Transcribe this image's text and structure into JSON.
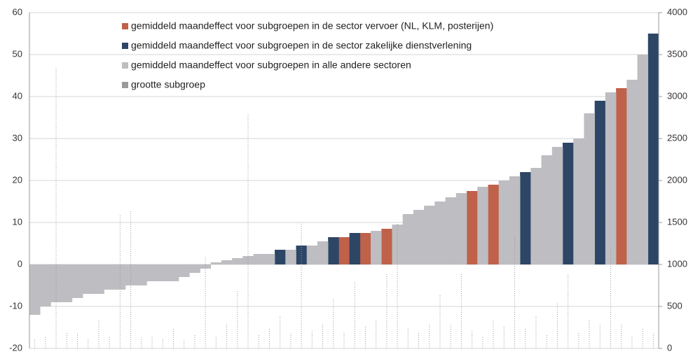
{
  "chart_data": {
    "type": "bar",
    "categories": [
      null,
      null,
      null,
      null,
      null,
      null,
      null,
      null,
      null,
      null,
      null,
      null,
      null,
      null,
      null,
      null,
      null,
      null,
      null,
      null,
      null,
      null,
      null,
      null,
      null,
      null,
      null,
      null,
      null,
      null,
      null,
      null,
      null,
      null,
      null,
      null,
      null,
      null,
      null,
      null,
      null,
      null,
      null,
      null,
      null,
      null,
      null,
      null,
      null,
      null,
      null,
      null,
      null,
      null,
      null,
      null,
      null,
      null,
      null
    ],
    "series": [
      {
        "name": "gemiddeld maandeffect voor subgroepen in de sector vervoer (NL, KLM, posterijen)",
        "color": "#c0614a",
        "values": [
          null,
          null,
          null,
          null,
          null,
          null,
          null,
          null,
          null,
          null,
          null,
          null,
          null,
          null,
          null,
          null,
          null,
          null,
          null,
          null,
          null,
          null,
          null,
          null,
          null,
          null,
          null,
          null,
          null,
          6.5,
          null,
          7.5,
          null,
          8.5,
          null,
          null,
          null,
          null,
          null,
          null,
          null,
          17.5,
          null,
          19,
          null,
          null,
          null,
          null,
          null,
          null,
          null,
          null,
          null,
          null,
          null,
          42,
          null,
          null,
          null
        ]
      },
      {
        "name": "gemiddeld maandeffect voor subgroepen in de sector zakelijke dienstverlening",
        "color": "#2d4666",
        "values": [
          null,
          null,
          null,
          null,
          null,
          null,
          null,
          null,
          null,
          null,
          null,
          null,
          null,
          null,
          null,
          null,
          null,
          null,
          null,
          null,
          null,
          null,
          null,
          3.5,
          null,
          4.5,
          null,
          null,
          6.5,
          null,
          7.5,
          null,
          null,
          null,
          null,
          null,
          null,
          null,
          null,
          null,
          null,
          null,
          null,
          null,
          null,
          null,
          22,
          null,
          null,
          null,
          29,
          null,
          null,
          39,
          null,
          null,
          null,
          null,
          55
        ]
      },
      {
        "name": "gemiddeld maandeffect voor subgroepen in alle andere sectoren",
        "color": "#bdbdc2",
        "values": [
          -12,
          -10,
          -9,
          -9,
          -8,
          -7,
          -7,
          -6,
          -6,
          -5,
          -5,
          -4,
          -4,
          -4,
          -3,
          -2,
          -1,
          0.5,
          1,
          1.5,
          2,
          2.5,
          2.5,
          null,
          3.5,
          null,
          4.5,
          5.5,
          null,
          null,
          null,
          null,
          8,
          null,
          9.5,
          12,
          13,
          14,
          15,
          16,
          17,
          null,
          18.5,
          null,
          20,
          21,
          null,
          23,
          26,
          28,
          null,
          30,
          36,
          null,
          41,
          null,
          44,
          50,
          null
        ]
      },
      {
        "name": "grootte subgroep",
        "color": "#9a9a9a",
        "axis": "y2",
        "values": [
          120,
          150,
          3350,
          200,
          180,
          120,
          350,
          150,
          1600,
          1650,
          130,
          150,
          120,
          250,
          90,
          170,
          1100,
          140,
          300,
          700,
          2800,
          160,
          250,
          400,
          180,
          1500,
          220,
          300,
          600,
          190,
          800,
          260,
          350,
          900,
          1500,
          250,
          200,
          300,
          650,
          280,
          900,
          220,
          150,
          330,
          260,
          1350,
          240,
          400,
          170,
          550,
          900,
          200,
          350,
          280,
          1200,
          300,
          150,
          250,
          180
        ]
      }
    ],
    "ylim": [
      -20,
      60
    ],
    "yticks": [
      -20,
      -10,
      0,
      10,
      20,
      30,
      40,
      50,
      60
    ],
    "y2lim": [
      0,
      4000
    ],
    "y2ticks": [
      0,
      500,
      1000,
      1500,
      2000,
      2500,
      3000,
      3500,
      4000
    ],
    "grid": true
  }
}
